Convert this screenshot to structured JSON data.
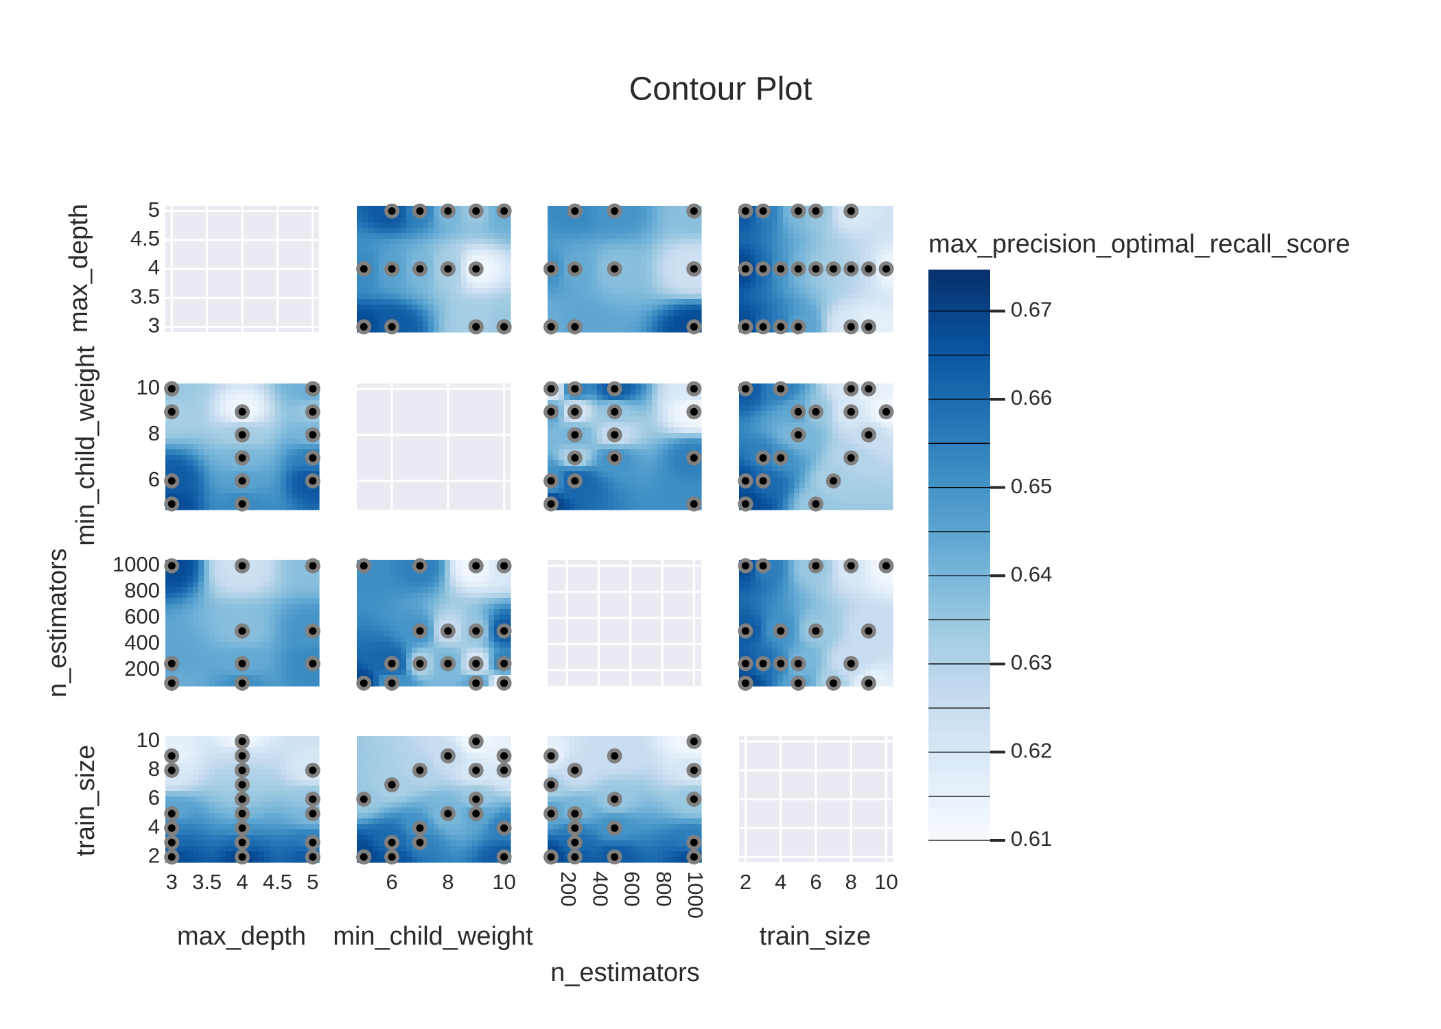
{
  "chart_data": {
    "type": "contour",
    "title": "Contour Plot",
    "params": [
      {
        "name": "max_depth",
        "lim": [
          2.91,
          5.09
        ],
        "ticks": [
          3,
          3.5,
          4,
          4.5,
          5
        ]
      },
      {
        "name": "min_child_weight",
        "lim": [
          4.75,
          10.23
        ],
        "ticks": [
          6,
          8,
          10
        ]
      },
      {
        "name": "n_estimators",
        "lim": [
          78,
          1046
        ],
        "ticks": [
          200,
          400,
          600,
          800,
          1000
        ]
      },
      {
        "name": "train_size",
        "lim": [
          1.63,
          10.37
        ],
        "ticks": [
          2,
          4,
          6,
          8,
          10
        ]
      }
    ],
    "trials": [
      {
        "params": [
          3,
          10,
          100,
          9
        ],
        "value": 0.615
      },
      {
        "params": [
          3,
          9,
          250,
          8
        ],
        "value": 0.62
      },
      {
        "params": [
          3,
          6,
          100,
          2
        ],
        "value": 0.668
      },
      {
        "params": [
          3,
          6,
          250,
          3
        ],
        "value": 0.66
      },
      {
        "params": [
          3,
          10,
          250,
          4
        ],
        "value": 0.655
      },
      {
        "params": [
          3,
          9,
          100,
          5
        ],
        "value": 0.645
      },
      {
        "params": [
          4,
          9,
          1000,
          10
        ],
        "value": 0.612
      },
      {
        "params": [
          4,
          8,
          500,
          9
        ],
        "value": 0.625
      },
      {
        "params": [
          4,
          7,
          250,
          8
        ],
        "value": 0.63
      },
      {
        "params": [
          4,
          6,
          100,
          7
        ],
        "value": 0.632
      },
      {
        "params": [
          4,
          5,
          1000,
          6
        ],
        "value": 0.635
      },
      {
        "params": [
          4,
          8,
          250,
          5
        ],
        "value": 0.64
      },
      {
        "params": [
          4,
          7,
          500,
          4
        ],
        "value": 0.65
      },
      {
        "params": [
          4,
          6,
          250,
          3
        ],
        "value": 0.66
      },
      {
        "params": [
          4,
          5,
          100,
          2
        ],
        "value": 0.67
      },
      {
        "params": [
          5,
          10,
          1000,
          8
        ],
        "value": 0.62
      },
      {
        "params": [
          5,
          9,
          500,
          6
        ],
        "value": 0.635
      },
      {
        "params": [
          5,
          8,
          250,
          5
        ],
        "value": 0.64
      },
      {
        "params": [
          5,
          7,
          1000,
          3
        ],
        "value": 0.655
      },
      {
        "params": [
          5,
          6,
          250,
          2
        ],
        "value": 0.665
      },
      {
        "params": [
          5,
          10,
          500,
          2
        ],
        "value": 0.664
      },
      {
        "params": [
          3,
          5,
          1000,
          2
        ],
        "value": 0.668
      }
    ],
    "colorbar": {
      "title": "max_precision_optimal_recall_score",
      "lim": [
        0.61,
        0.6747
      ],
      "ticks": [
        0.61,
        0.62,
        0.63,
        0.64,
        0.65,
        0.66,
        0.67
      ],
      "colorscale": [
        [
          0,
          "rgb(247,251,255)"
        ],
        [
          0.125,
          "rgb(222,235,247)"
        ],
        [
          0.25,
          "rgb(198,219,239)"
        ],
        [
          0.375,
          "rgb(158,202,225)"
        ],
        [
          0.5,
          "rgb(107,174,214)"
        ],
        [
          0.625,
          "rgb(66,146,198)"
        ],
        [
          0.75,
          "rgb(33,113,181)"
        ],
        [
          0.875,
          "rgb(8,81,156)"
        ],
        [
          1,
          "rgb(8,48,107)"
        ]
      ]
    },
    "point_color": "#000000",
    "point_outline": "#808080",
    "empty_color": "#eaeaf2"
  }
}
